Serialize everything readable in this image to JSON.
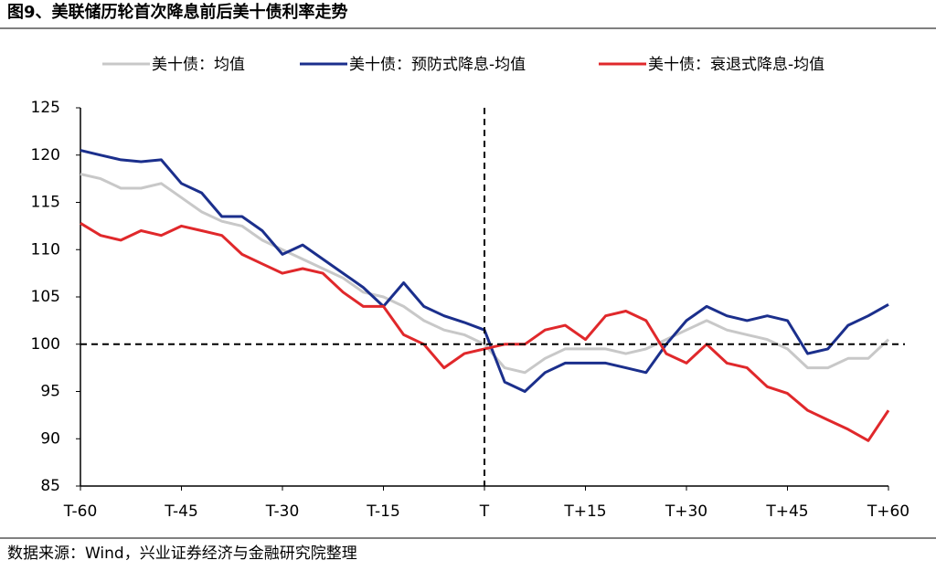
{
  "chart_data": {
    "type": "line",
    "title": "图9、美联储历轮首次降息前后美十债利率走势",
    "source": "数据来源：Wind，兴业证券经济与金融研究院整理",
    "x": [
      -60,
      -57,
      -54,
      -51,
      -48,
      -45,
      -42,
      -39,
      -36,
      -33,
      -30,
      -27,
      -24,
      -21,
      -18,
      -15,
      -12,
      -9,
      -6,
      -3,
      0,
      3,
      6,
      9,
      12,
      15,
      18,
      21,
      24,
      27,
      30,
      33,
      36,
      39,
      42,
      45,
      48,
      51,
      54,
      57,
      60
    ],
    "series": [
      {
        "name": "美十债：均值",
        "color": "#c8c8c8",
        "values": [
          118,
          117.5,
          116.5,
          116.5,
          117,
          115.5,
          114,
          113,
          112.5,
          111,
          110,
          109,
          108,
          107,
          105.5,
          105,
          104,
          102.5,
          101.5,
          101,
          100,
          97.5,
          97,
          98.5,
          99.5,
          99.5,
          99.5,
          99,
          99.5,
          100.5,
          101.5,
          102.5,
          101.5,
          101,
          100.5,
          99.5,
          97.5,
          97.5,
          98.5,
          98.5,
          100.5
        ]
      },
      {
        "name": "美十债：预防式降息-均值",
        "color": "#1b2f8c",
        "values": [
          120.5,
          120,
          119.5,
          119.3,
          119.5,
          117,
          116,
          113.5,
          113.5,
          112,
          109.5,
          110.5,
          109,
          107.5,
          106,
          104,
          106.5,
          104,
          103,
          102.3,
          101.5,
          96,
          95,
          97,
          98,
          98,
          98,
          97.5,
          97,
          100,
          102.5,
          104,
          103,
          102.5,
          103,
          102.5,
          99,
          99.5,
          102,
          103,
          104.2
        ]
      },
      {
        "name": "美十债：衰退式降息-均值",
        "color": "#e0282b",
        "values": [
          112.8,
          111.5,
          111,
          112,
          111.5,
          112.5,
          112,
          111.5,
          109.5,
          108.5,
          107.5,
          108,
          107.5,
          105.5,
          104,
          104,
          101,
          100,
          97.5,
          99,
          99.5,
          100,
          100,
          101.5,
          102,
          100.5,
          103,
          103.5,
          102.5,
          99,
          98,
          100,
          98,
          97.5,
          95.5,
          94.8,
          93,
          92,
          91,
          89.8,
          93
        ]
      }
    ],
    "xlim": [
      -60,
      60
    ],
    "xticks": [
      {
        "value": -60,
        "label": "T-60"
      },
      {
        "value": -45,
        "label": "T-45"
      },
      {
        "value": -30,
        "label": "T-30"
      },
      {
        "value": -15,
        "label": "T-15"
      },
      {
        "value": 0,
        "label": "T"
      },
      {
        "value": 15,
        "label": "T+15"
      },
      {
        "value": 30,
        "label": "T+30"
      },
      {
        "value": 45,
        "label": "T+45"
      },
      {
        "value": 60,
        "label": "T+60"
      }
    ],
    "ylim": [
      85,
      125
    ],
    "yticks": [
      85,
      90,
      95,
      100,
      105,
      110,
      115,
      120,
      125
    ],
    "hline": 100,
    "vline": 0,
    "grid": false,
    "legend": "top"
  }
}
